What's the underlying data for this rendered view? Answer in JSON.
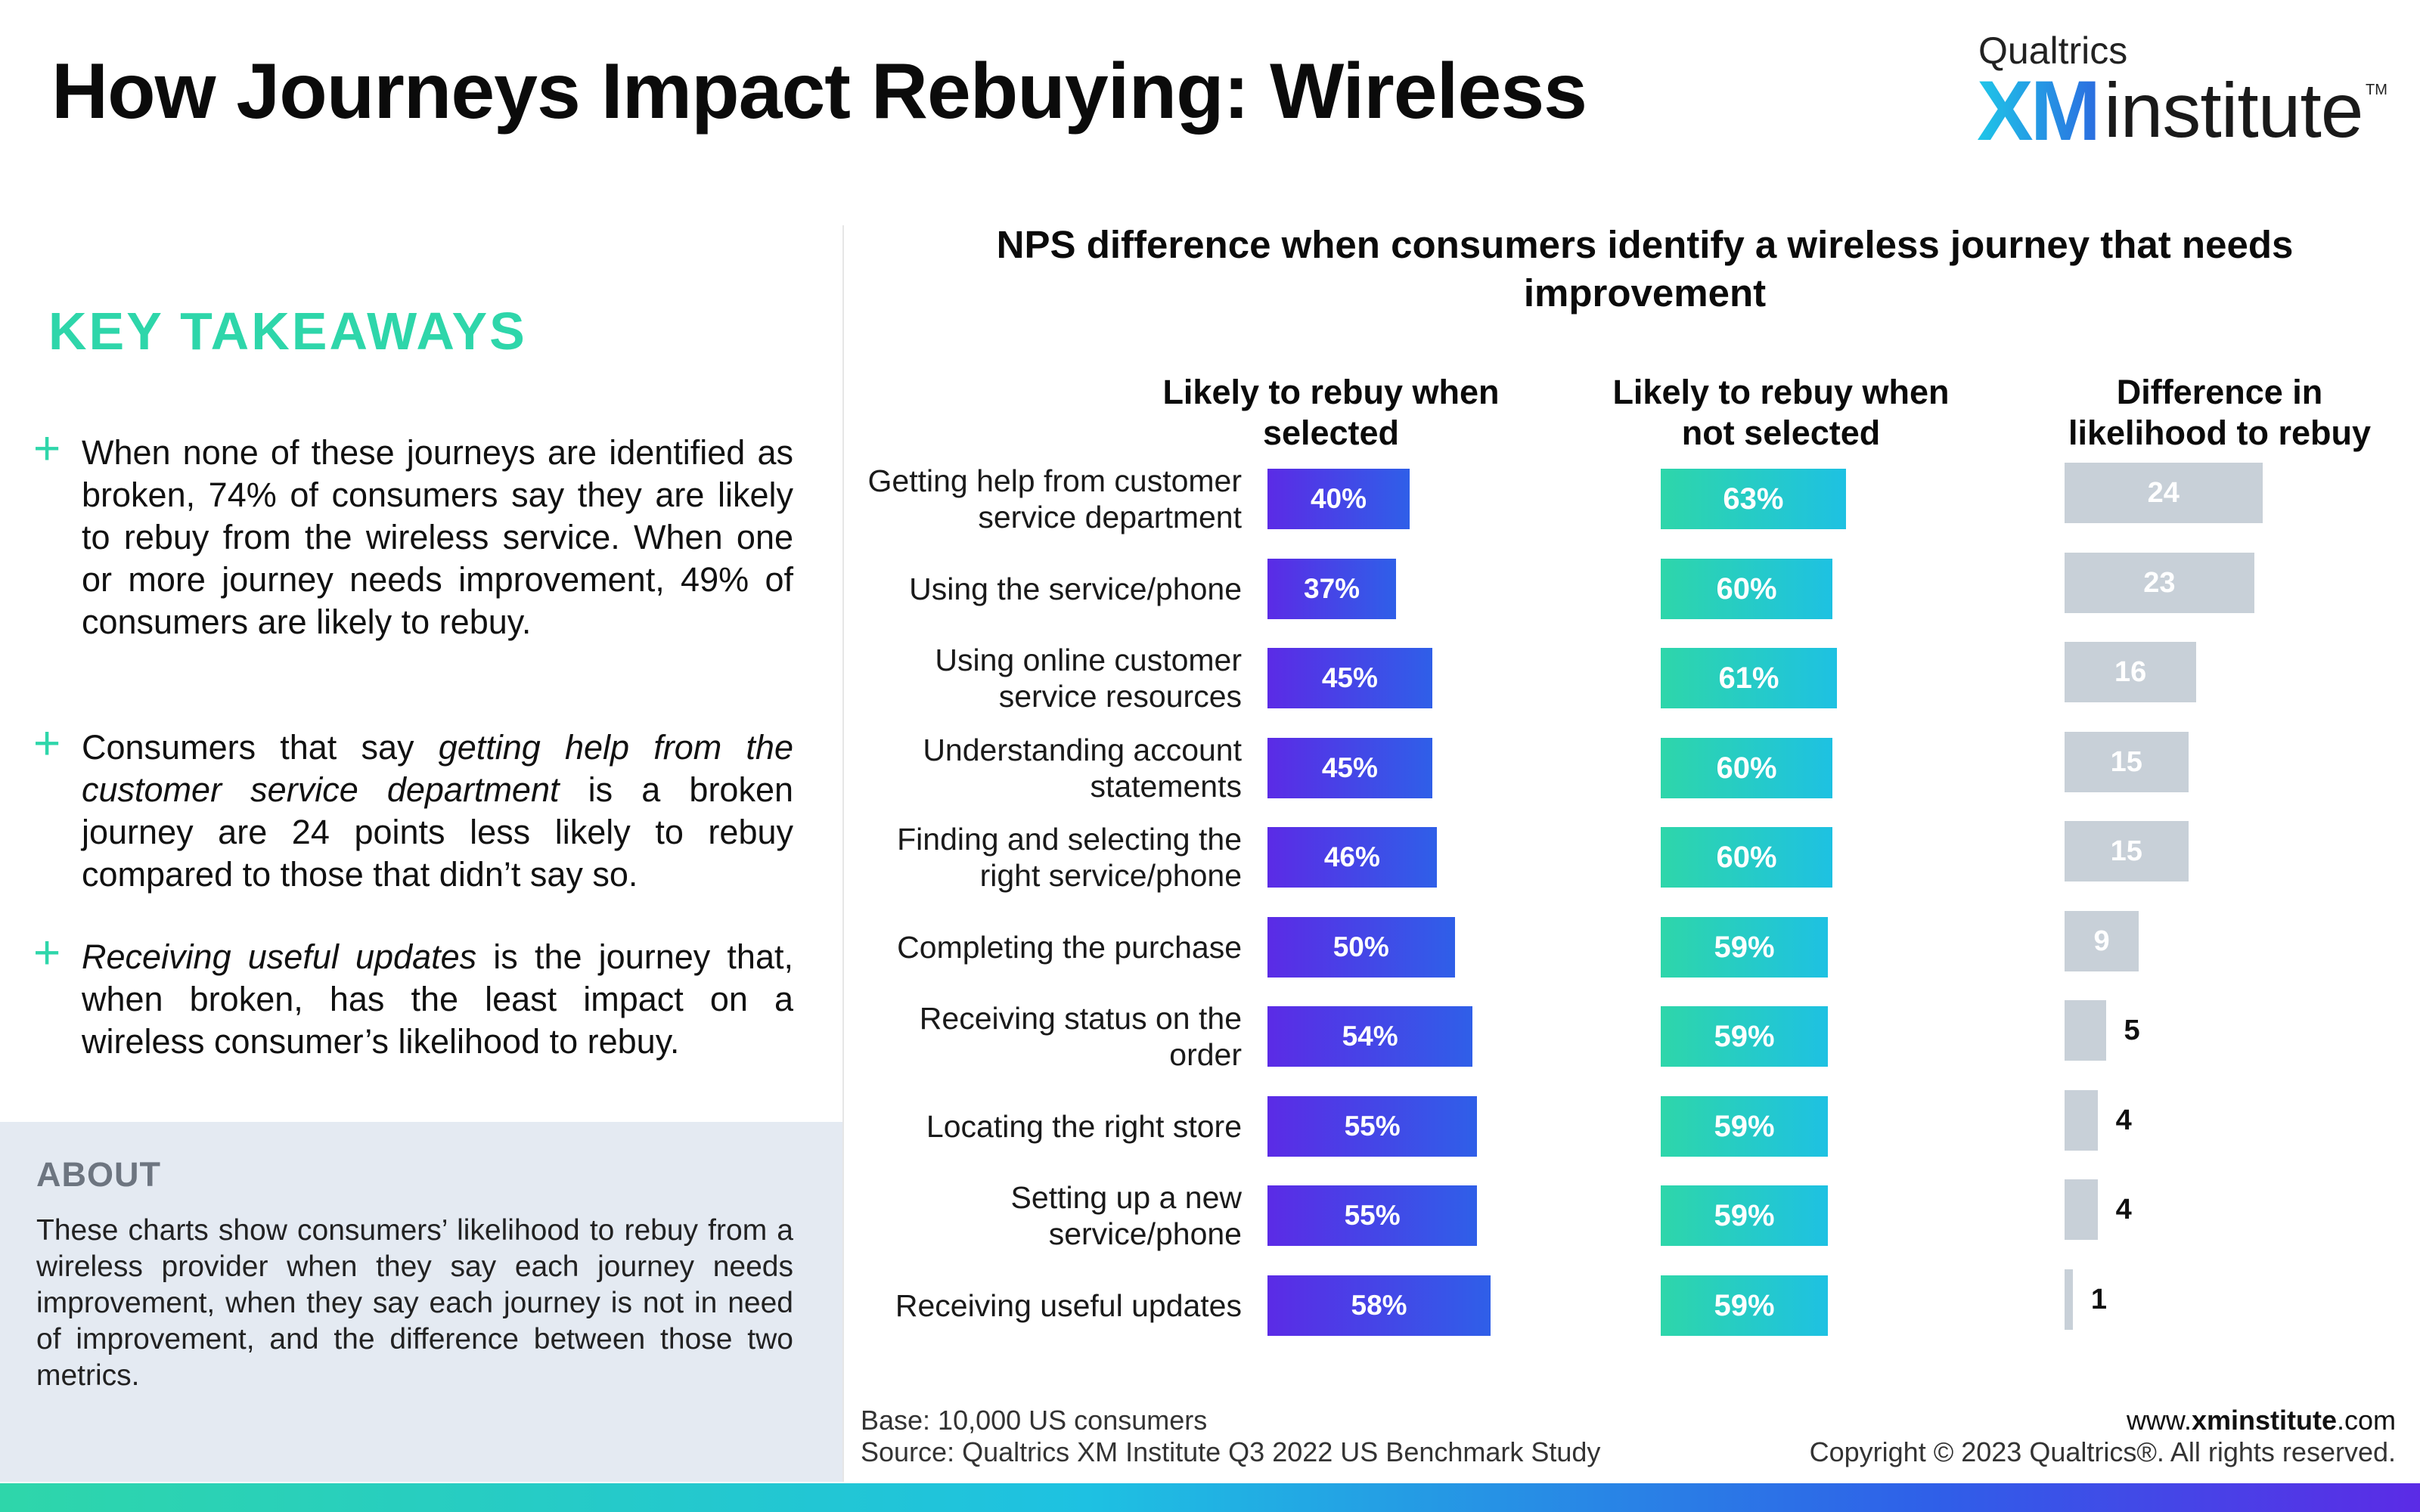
{
  "header": {
    "title": "How Journeys Impact Rebuying: Wireless",
    "logo_brand": "Qualtrics",
    "logo_xm": "XM",
    "logo_institute": "institute",
    "logo_tm": "TM"
  },
  "takeaways": {
    "heading": "KEY TAKEAWAYS",
    "items": [
      {
        "text": "When none of these journeys are identified as broken, 74% of consumers say they are likely to rebuy from the wireless service. When one or more journey needs improvement, 49% of consumers are likely to rebuy."
      },
      {
        "pre": "Consumers that say ",
        "em": "getting help from the customer service department",
        "post": " is a broken journey are 24 points less likely to rebuy compared to those that didn’t say so."
      },
      {
        "pre": "",
        "em": "Receiving useful updates",
        "post": " is the journey that, when broken, has the least impact on a wireless consumer’s likelihood to rebuy."
      }
    ]
  },
  "about": {
    "heading": "ABOUT",
    "text": "These charts show consumers’ likelihood to rebuy from a wireless provider when they say each journey needs improvement, when they say each journey is not in need of improvement, and the difference between those two metrics."
  },
  "chart_data": {
    "type": "bar",
    "orientation": "horizontal",
    "title": "NPS difference when consumers identify a wireless journey that needs improvement",
    "categories": [
      "Getting help from customer service department",
      "Using the service/phone",
      "Using online customer service resources",
      "Understanding account statements",
      "Finding and selecting the right service/phone",
      "Completing the purchase",
      "Receiving status on the order",
      "Locating the right store",
      "Setting up a new service/phone",
      "Receiving useful updates"
    ],
    "category_lines": [
      [
        "Getting help from customer",
        "service department"
      ],
      [
        "Using the service/phone"
      ],
      [
        "Using online customer",
        "service resources"
      ],
      [
        "Understanding account",
        "statements"
      ],
      [
        "Finding and selecting the",
        "right service/phone"
      ],
      [
        "Completing the purchase"
      ],
      [
        "Receiving status on the",
        "order"
      ],
      [
        "Locating the right store"
      ],
      [
        "Setting up a new",
        "service/phone"
      ],
      [
        "Receiving useful updates"
      ]
    ],
    "series": [
      {
        "name": "Likely to rebuy when selected",
        "values": [
          40,
          37,
          45,
          45,
          46,
          50,
          54,
          55,
          55,
          58
        ],
        "labels": [
          "40%",
          "37%",
          "45%",
          "45%",
          "46%",
          "50%",
          "54%",
          "55%",
          "55%",
          "58%"
        ],
        "color": "#4a3ee6"
      },
      {
        "name": "Likely to rebuy when not selected",
        "values": [
          63,
          60,
          61,
          60,
          60,
          59,
          59,
          59,
          59,
          59
        ],
        "labels": [
          "63%",
          "60%",
          "61%",
          "60%",
          "60%",
          "59%",
          "59%",
          "59%",
          "59%",
          "59%"
        ],
        "color": "#26cdc2"
      },
      {
        "name": "Difference in likelihood to rebuy",
        "values": [
          24,
          23,
          16,
          15,
          15,
          9,
          5,
          4,
          4,
          1
        ],
        "labels": [
          "24",
          "23",
          "16",
          "15",
          "15",
          "9",
          "5",
          "4",
          "4",
          "1"
        ],
        "color": "#c8d0d8"
      }
    ],
    "column_headers": {
      "selected": "Likely to rebuy when selected",
      "not_selected": "Likely to rebuy when not selected",
      "difference": "Difference in likelihood to rebuy"
    },
    "grid": false,
    "legend": "none"
  },
  "footer": {
    "base": "Base: 10,000 US consumers",
    "source": "Source: Qualtrics XM Institute Q3 2022 US Benchmark Study",
    "url_pre": "www.",
    "url_bold": "xminstitute",
    "url_post": ".com",
    "copyright": "Copyright © 2023 Qualtrics®. All rights reserved."
  }
}
